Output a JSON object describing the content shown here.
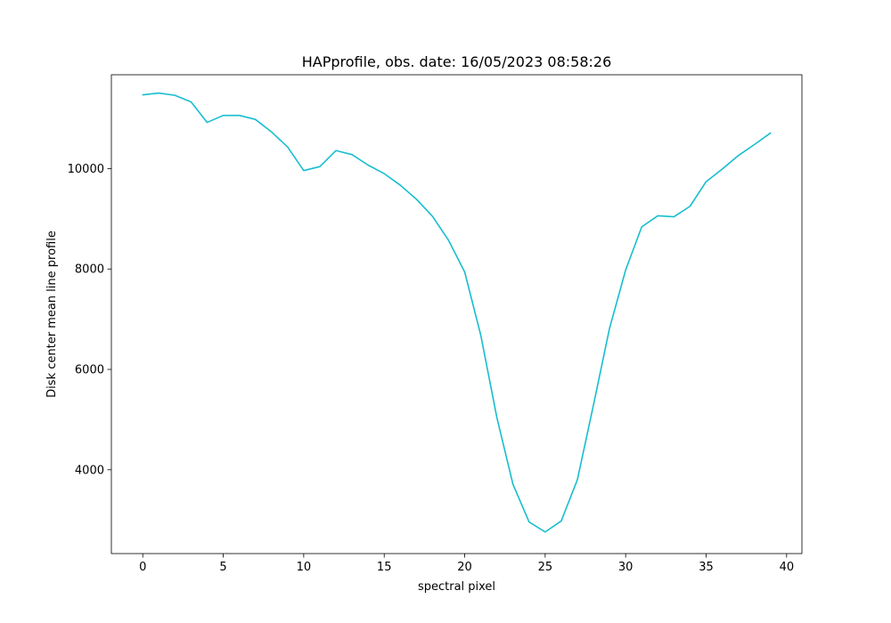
{
  "chart_data": {
    "type": "line",
    "title": "HAPprofile, obs. date: 16/05/2023 08:58:26",
    "xlabel": "spectral pixel",
    "ylabel": "Disk center mean line profile",
    "xlim": [
      -1.95,
      40.95
    ],
    "ylim": [
      2330,
      11870
    ],
    "grid": false,
    "x_ticks": [
      0,
      5,
      10,
      15,
      20,
      25,
      30,
      35,
      40
    ],
    "x_tick_labels": [
      "0",
      "5",
      "10",
      "15",
      "20",
      "25",
      "30",
      "35",
      "40"
    ],
    "y_ticks": [
      4000,
      6000,
      8000,
      10000
    ],
    "y_tick_labels": [
      "4000",
      "6000",
      "8000",
      "10000"
    ],
    "series": [
      {
        "color": "#17becf",
        "x": [
          0,
          1,
          2,
          3,
          4,
          5,
          6,
          7,
          8,
          9,
          10,
          11,
          12,
          13,
          14,
          15,
          16,
          17,
          18,
          19,
          20,
          21,
          22,
          23,
          24,
          25,
          26,
          27,
          28,
          29,
          30,
          31,
          32,
          33,
          34,
          35,
          36,
          37,
          38,
          39
        ],
        "y": [
          11470,
          11505,
          11460,
          11330,
          10920,
          11060,
          11060,
          10980,
          10730,
          10430,
          9960,
          10040,
          10360,
          10280,
          10070,
          9900,
          9670,
          9390,
          9050,
          8570,
          7940,
          6680,
          5040,
          3710,
          2960,
          2760,
          2980,
          3800,
          5290,
          6820,
          7980,
          8840,
          9060,
          9040,
          9250,
          9740,
          9990,
          10260,
          10480,
          10710
        ]
      }
    ]
  }
}
